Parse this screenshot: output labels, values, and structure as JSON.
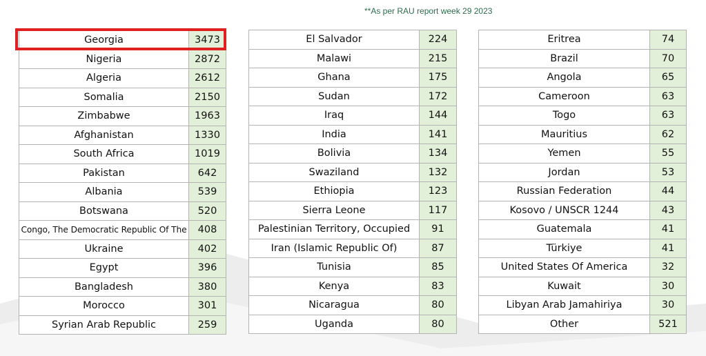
{
  "note": "**As per RAU report week 29 2023",
  "tables": [
    [
      {
        "country": "Georgia",
        "value": "3473"
      },
      {
        "country": "Nigeria",
        "value": "2872"
      },
      {
        "country": "Algeria",
        "value": "2612"
      },
      {
        "country": "Somalia",
        "value": "2150"
      },
      {
        "country": "Zimbabwe",
        "value": "1963"
      },
      {
        "country": "Afghanistan",
        "value": "1330"
      },
      {
        "country": "South Africa",
        "value": "1019"
      },
      {
        "country": "Pakistan",
        "value": "642"
      },
      {
        "country": "Albania",
        "value": "539"
      },
      {
        "country": "Botswana",
        "value": "520"
      },
      {
        "country": "Congo, The Democratic Republic Of The",
        "value": "408"
      },
      {
        "country": "Ukraine",
        "value": "402"
      },
      {
        "country": "Egypt",
        "value": "396"
      },
      {
        "country": "Bangladesh",
        "value": "380"
      },
      {
        "country": "Morocco",
        "value": "301"
      },
      {
        "country": "Syrian Arab Republic",
        "value": "259"
      }
    ],
    [
      {
        "country": "El Salvador",
        "value": "224"
      },
      {
        "country": "Malawi",
        "value": "215"
      },
      {
        "country": "Ghana",
        "value": "175"
      },
      {
        "country": "Sudan",
        "value": "172"
      },
      {
        "country": "Iraq",
        "value": "144"
      },
      {
        "country": "India",
        "value": "141"
      },
      {
        "country": "Bolivia",
        "value": "134"
      },
      {
        "country": "Swaziland",
        "value": "132"
      },
      {
        "country": "Ethiopia",
        "value": "123"
      },
      {
        "country": "Sierra Leone",
        "value": "117"
      },
      {
        "country": "Palestinian Territory, Occupied",
        "value": "91"
      },
      {
        "country": "Iran (Islamic Republic Of)",
        "value": "87"
      },
      {
        "country": "Tunisia",
        "value": "85"
      },
      {
        "country": "Kenya",
        "value": "83"
      },
      {
        "country": "Nicaragua",
        "value": "80"
      },
      {
        "country": "Uganda",
        "value": "80"
      }
    ],
    [
      {
        "country": "Eritrea",
        "value": "74"
      },
      {
        "country": "Brazil",
        "value": "70"
      },
      {
        "country": "Angola",
        "value": "65"
      },
      {
        "country": "Cameroon",
        "value": "63"
      },
      {
        "country": "Togo",
        "value": "63"
      },
      {
        "country": "Mauritius",
        "value": "62"
      },
      {
        "country": "Yemen",
        "value": "55"
      },
      {
        "country": "Jordan",
        "value": "53"
      },
      {
        "country": "Russian Federation",
        "value": "44"
      },
      {
        "country": "Kosovo / UNSCR 1244",
        "value": "43"
      },
      {
        "country": "Guatemala",
        "value": "41"
      },
      {
        "country": "Türkiye",
        "value": "41"
      },
      {
        "country": "United States Of America",
        "value": "32"
      },
      {
        "country": "Kuwait",
        "value": "30"
      },
      {
        "country": "Libyan Arab Jamahiriya",
        "value": "30"
      },
      {
        "country": "Other",
        "value": "521"
      }
    ]
  ],
  "highlighted_row": "Georgia",
  "colors": {
    "value_cell_bg": "#e2f0d9",
    "highlight_border": "#e02020",
    "note_text": "#2e6b4f",
    "grid_border": "#b3b3b3"
  }
}
